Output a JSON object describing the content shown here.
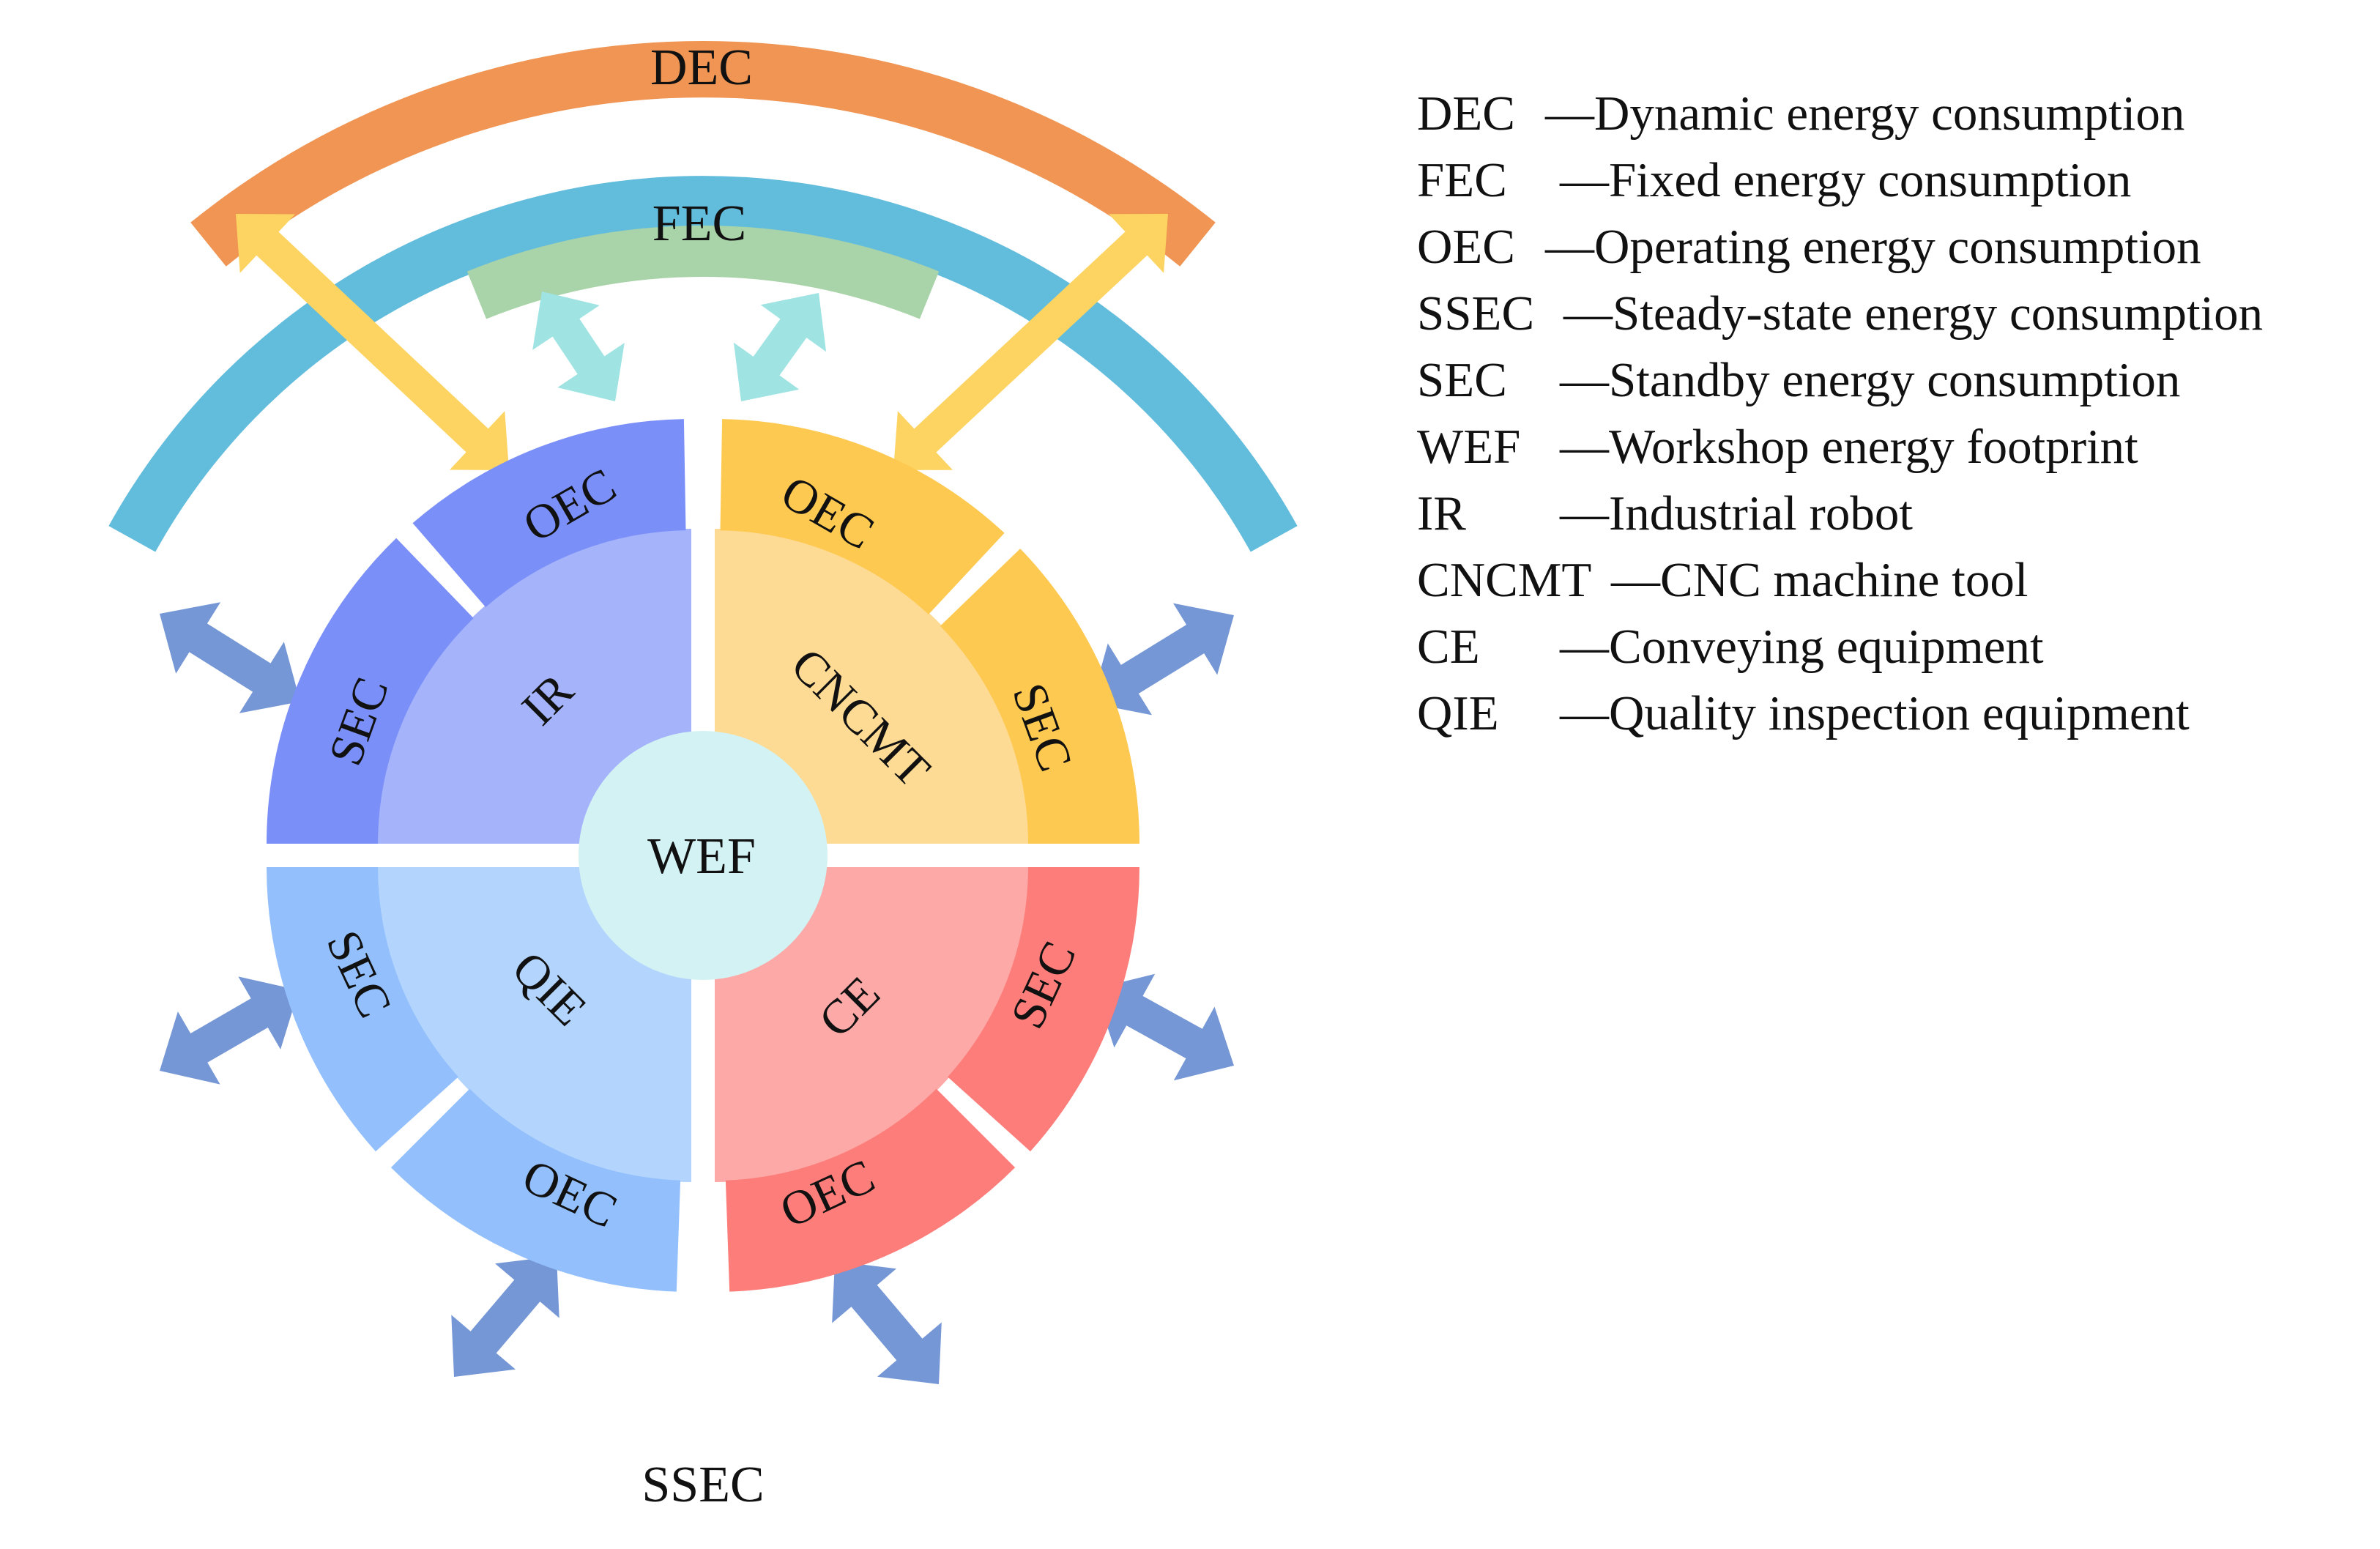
{
  "diagram": {
    "center": "WEF",
    "outer_top_arc": "DEC",
    "inner_top_arc": "FEC",
    "outer_ring": "SSEC",
    "quadrants": [
      {
        "id": "ir",
        "device_label": "IR",
        "segment_a": "OEC",
        "segment_b": "SEC",
        "colors": {
          "inner": "#a4b3fa",
          "segment": "#7b8ff8"
        }
      },
      {
        "id": "cncmt",
        "device_label": "CNCMT",
        "segment_a": "OEC",
        "segment_b": "SEC",
        "colors": {
          "inner": "#fddb95",
          "segment": "#fdc951"
        }
      },
      {
        "id": "qie",
        "device_label": "QIE",
        "segment_a": "OEC",
        "segment_b": "SEC",
        "colors": {
          "inner": "#b3d5fd",
          "segment": "#93c0fc"
        }
      },
      {
        "id": "ce",
        "device_label": "CE",
        "segment_a": "OEC",
        "segment_b": "SEC",
        "colors": {
          "inner": "#fda9a7",
          "segment": "#fc7d79"
        }
      }
    ],
    "colors": {
      "dec": "#f09553",
      "fec": "#a9d3a8",
      "ssec": "#62bcdc",
      "center": "#d3f2f3",
      "arrow_dec": "#fdd461",
      "arrow_fec": "#9fe3e2",
      "arrow_ssec": "#7597d6"
    }
  },
  "legend": [
    {
      "abbr": "DEC",
      "desc": "Dynamic energy consumption"
    },
    {
      "abbr": "FEC",
      "desc": "Fixed energy consumption"
    },
    {
      "abbr": "OEC",
      "desc": "Operating energy consumption"
    },
    {
      "abbr": "SSEC",
      "desc": "Steady-state energy consumption"
    },
    {
      "abbr": "SEC",
      "desc": "Standby energy consumption"
    },
    {
      "abbr": "WEF",
      "desc": "Workshop energy footprint"
    },
    {
      "abbr": "IR",
      "desc": "Industrial robot"
    },
    {
      "abbr": "CNCMT",
      "desc": "CNC machine tool"
    },
    {
      "abbr": "CE",
      "desc": "Conveying equipment"
    },
    {
      "abbr": "QIE",
      "desc": "Quality inspection equipment"
    }
  ]
}
